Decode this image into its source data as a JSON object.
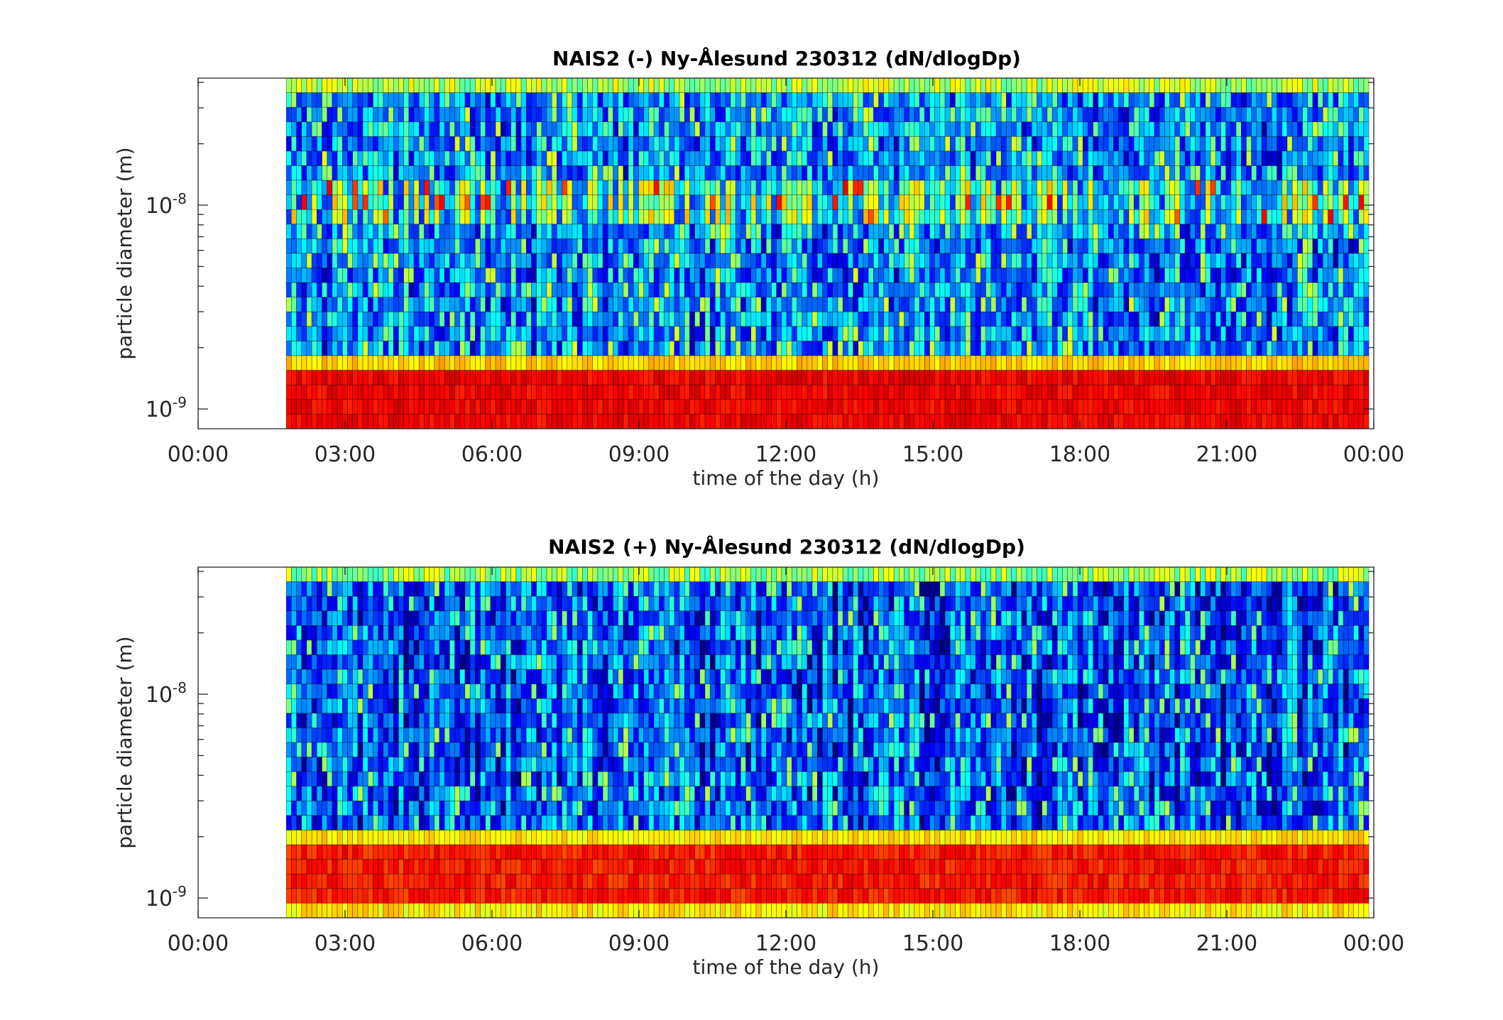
{
  "chart_data": [
    {
      "type": "heatmap",
      "title": "NAIS2 (-) Ny-Ålesund 230312 (dN/dlogDp)",
      "xlabel": "time of the day (h)",
      "ylabel": "particle diameter (m)",
      "x_ticks": [
        "00:00",
        "03:00",
        "06:00",
        "09:00",
        "12:00",
        "15:00",
        "18:00",
        "21:00",
        "00:00"
      ],
      "y_ticks": [
        {
          "base": "10",
          "exp": "-9"
        },
        {
          "base": "10",
          "exp": "-8"
        }
      ],
      "xlim_hours": [
        0,
        24
      ],
      "ylim_m": [
        8e-10,
        4.2e-08
      ],
      "y_scale": "log",
      "data_start_hour": 1.8,
      "data_end_hour": 23.9,
      "colormap": "jet",
      "pattern": "Lowest diameter bins (~0.8–1.3 nm) high concentration (red/orange) throughout; mostly low-to-medium (blue/cyan) above; yellow-orange streaks near 5–7 nm."
    },
    {
      "type": "heatmap",
      "title": "NAIS2 (+) Ny-Ålesund 230312 (dN/dlogDp)",
      "xlabel": "time of the day (h)",
      "ylabel": "particle diameter (m)",
      "x_ticks": [
        "00:00",
        "03:00",
        "06:00",
        "09:00",
        "12:00",
        "15:00",
        "18:00",
        "21:00",
        "00:00"
      ],
      "y_ticks": [
        {
          "base": "10",
          "exp": "-9"
        },
        {
          "base": "10",
          "exp": "-8"
        }
      ],
      "xlim_hours": [
        0,
        24
      ],
      "ylim_m": [
        8e-10,
        4.2e-08
      ],
      "y_scale": "log",
      "data_start_hour": 1.8,
      "data_end_hour": 23.9,
      "colormap": "jet",
      "pattern": "Lowest diameter bins (~0.8–1.6 nm) high concentration (orange/red band with yellow edges); mostly blue/dark-blue above with cyan/yellow near the top."
    }
  ]
}
